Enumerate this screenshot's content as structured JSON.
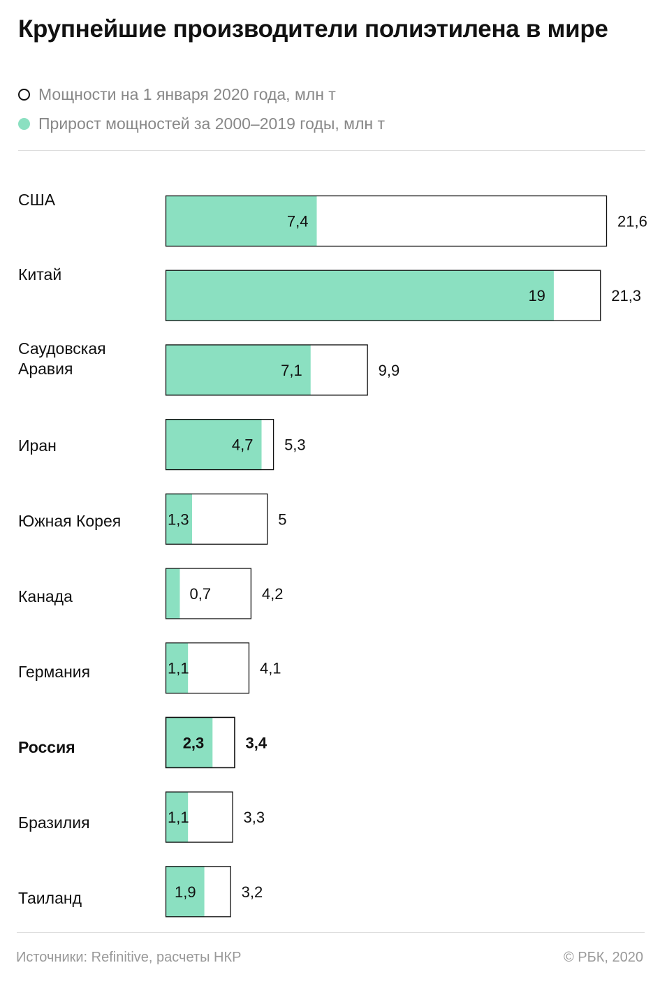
{
  "title": "Крупнейшие производители полиэтилена в мире",
  "legend": {
    "total": "Мощности на 1 января 2020 года, млн т",
    "growth": "Прирост мощностей за 2000–2019 годы, млн т"
  },
  "colors": {
    "growth": "#8be0c1",
    "outline": "#111111",
    "rule": "#dddddd"
  },
  "chart_data": {
    "type": "bar",
    "orientation": "horizontal",
    "categories": [
      "США",
      "Китай",
      "Саудовская Аравия",
      "Иран",
      "Южная Корея",
      "Канада",
      "Германия",
      "Россия",
      "Бразилия",
      "Таиланд"
    ],
    "highlight": "Россия",
    "series": [
      {
        "name": "Мощности на 1 января 2020 года, млн т",
        "values": [
          21.6,
          21.3,
          9.9,
          5.3,
          5,
          4.2,
          4.1,
          3.4,
          3.3,
          3.2
        ],
        "labels": [
          "21,6",
          "21,3",
          "9,9",
          "5,3",
          "5",
          "4,2",
          "4,1",
          "3,4",
          "3,3",
          "3,2"
        ]
      },
      {
        "name": "Прирост мощностей за 2000–2019 годы, млн т",
        "values": [
          7.4,
          19,
          7.1,
          4.7,
          1.3,
          0.7,
          1.1,
          2.3,
          1.1,
          1.9
        ],
        "labels": [
          "7,4",
          "19",
          "7,1",
          "4,7",
          "1,3",
          "0,7",
          "1,1",
          "2,3",
          "1,1",
          "1,9"
        ]
      }
    ],
    "xlim": [
      0,
      21.6
    ]
  },
  "footer": {
    "source": "Источники: Refinitive, расчеты НКР",
    "copyright": "© РБК, 2020"
  }
}
